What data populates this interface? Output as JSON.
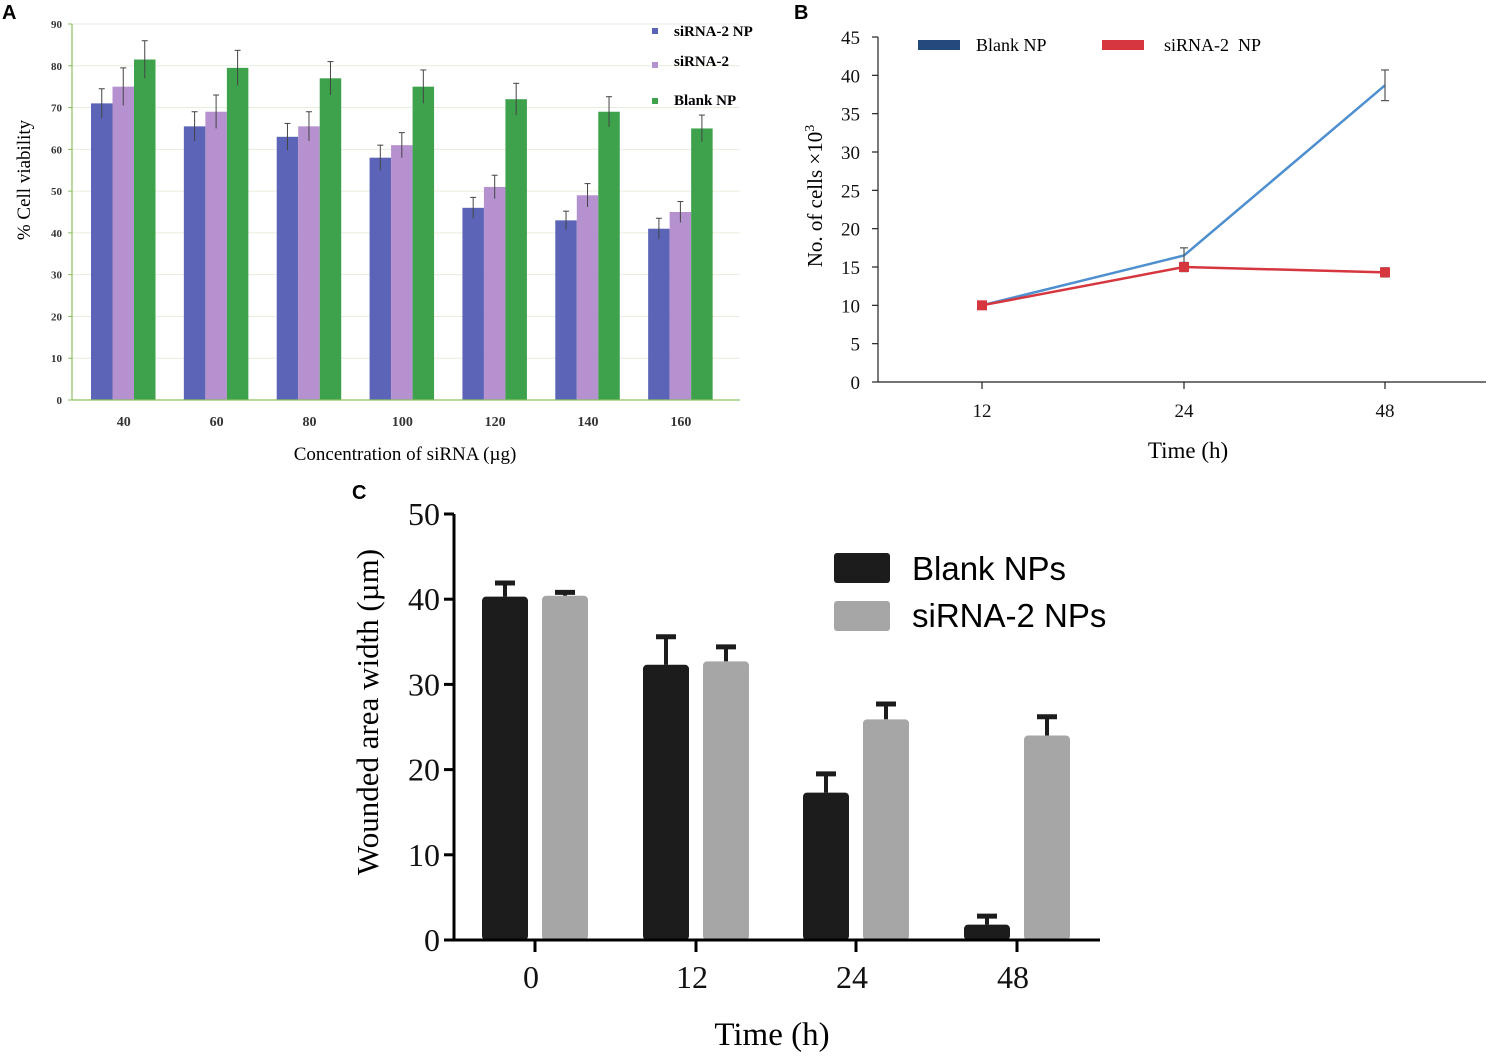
{
  "colors": {
    "siRNA2NP_A": "#5b64b6",
    "siRNA2_A": "#b591cf",
    "blankNP_A": "#3da24b",
    "axisA": "#8cbf5f",
    "blankNP_B": "#4e8fd0",
    "siRNA2NP_B": "#d6363e",
    "blankNPs_C": "#1c1c1c",
    "siRNA2NPs_C": "#a6a6a6"
  },
  "chart_data": [
    {
      "id": "A",
      "panel_label": "A",
      "type": "bar",
      "title": "",
      "xlabel": "Concentration of  siRNA (µg)",
      "ylabel": "% Cell viability",
      "ylim": [
        0,
        90
      ],
      "yticks": [
        "0",
        "10",
        "20",
        "30",
        "40",
        "50",
        "60",
        "70",
        "80",
        "90"
      ],
      "categories": [
        "40",
        "60",
        "80",
        "100",
        "120",
        "140",
        "160"
      ],
      "legend_position": "top-right",
      "series": [
        {
          "name": "siRNA-2 NP",
          "values": [
            71,
            65.5,
            63,
            58,
            46,
            43,
            41
          ],
          "errors": [
            3.5,
            3.5,
            3.2,
            3,
            2.5,
            2.2,
            2.5
          ]
        },
        {
          "name": "siRNA-2",
          "values": [
            75,
            69,
            65.5,
            61,
            51,
            49,
            45
          ],
          "errors": [
            4.5,
            4,
            3.5,
            3,
            2.8,
            2.8,
            2.5
          ]
        },
        {
          "name": "Blank NP",
          "values": [
            81.5,
            79.5,
            77,
            75,
            72,
            69,
            65
          ],
          "errors": [
            4.5,
            4.2,
            4,
            4,
            3.8,
            3.6,
            3.2
          ]
        }
      ]
    },
    {
      "id": "B",
      "panel_label": "B",
      "type": "line",
      "title": "",
      "xlabel": "Time (h)",
      "ylabel": "No. of cells ×10",
      "ylabel_sup": "3",
      "ylim": [
        0,
        45
      ],
      "yticks": [
        "0",
        "5",
        "10",
        "15",
        "20",
        "25",
        "30",
        "35",
        "40",
        "45"
      ],
      "x": [
        "12",
        "24",
        "48"
      ],
      "legend_position": "top",
      "series": [
        {
          "name": "Blank NP",
          "values": [
            10,
            16.5,
            38.7
          ],
          "errors": [
            0,
            1,
            2
          ]
        },
        {
          "name": "siRNA-2  NP",
          "values": [
            10,
            15,
            14.3
          ],
          "errors": [
            0.3,
            0.6,
            0.6
          ]
        }
      ]
    },
    {
      "id": "C",
      "panel_label": "C",
      "type": "bar",
      "title": "",
      "xlabel": "Time (h)",
      "ylabel": "Wounded area width (µm)",
      "ylim": [
        0,
        50
      ],
      "yticks": [
        "0",
        "10",
        "20",
        "30",
        "40",
        "50"
      ],
      "categories": [
        "0",
        "12",
        "24",
        "48"
      ],
      "legend_position": "top-right",
      "series": [
        {
          "name": "Blank NPs",
          "values": [
            40.3,
            32.3,
            17.3,
            1.8
          ],
          "errors": [
            1.6,
            3.3,
            2.2,
            1
          ]
        },
        {
          "name": "siRNA-2 NPs",
          "values": [
            40.4,
            32.7,
            25.9,
            24
          ],
          "errors": [
            0.4,
            1.7,
            1.8,
            2.2
          ]
        }
      ]
    }
  ]
}
